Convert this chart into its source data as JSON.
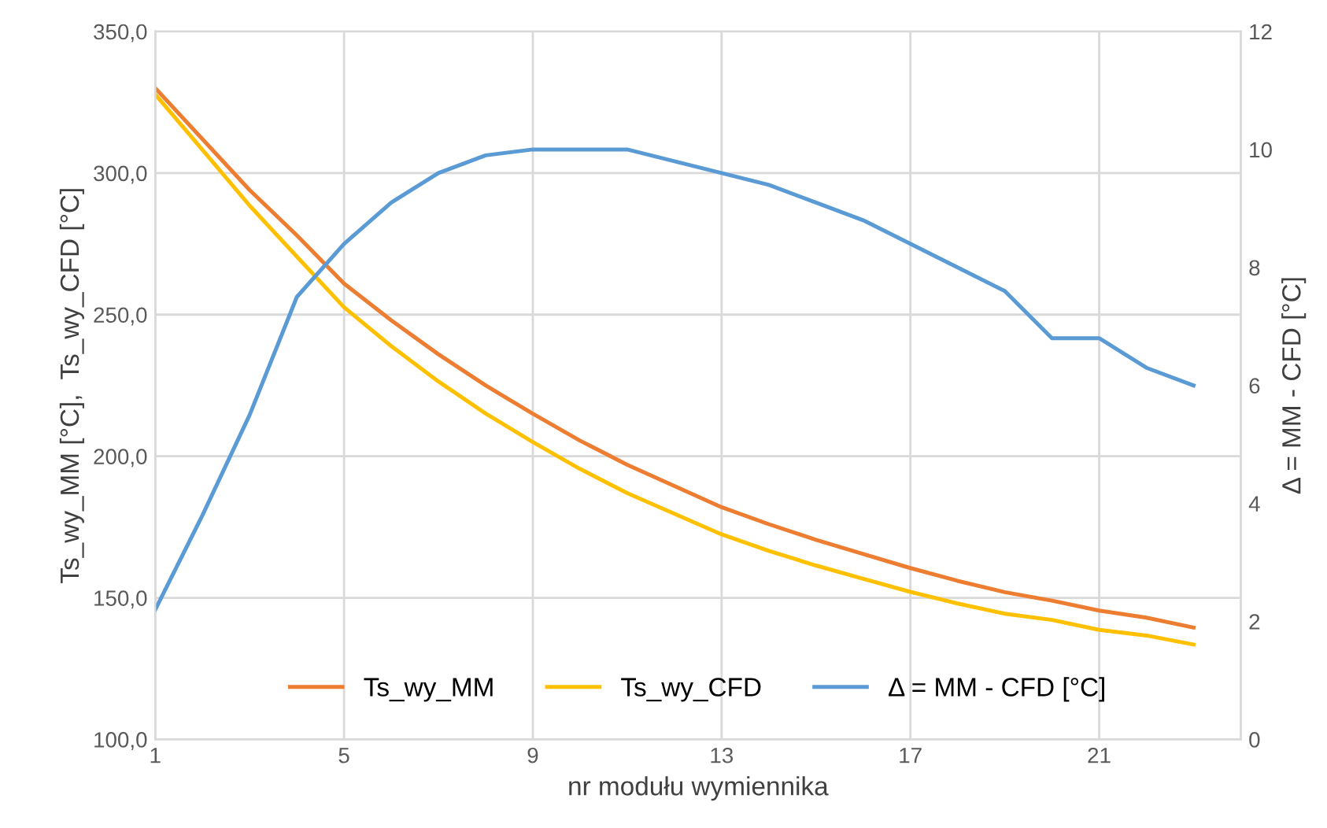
{
  "chart_data": {
    "type": "line",
    "xlabel": "nr modułu wymiennika",
    "ylabel": "Ts_wy_MM [°C],  Ts_wy_CFD [°C]",
    "y2label": "Δ = MM - CFD [°C]",
    "x": [
      1,
      2,
      3,
      4,
      5,
      6,
      7,
      8,
      9,
      10,
      11,
      12,
      13,
      14,
      15,
      16,
      17,
      18,
      19,
      20,
      21,
      22,
      23
    ],
    "series": [
      {
        "name": "Ts_wy_MM",
        "color": "#ed7d31",
        "values": [
          330,
          312,
          294,
          278,
          261,
          248,
          236,
          225,
          215,
          205.5,
          197,
          189.5,
          182,
          176,
          170.5,
          165.5,
          160.5,
          156,
          152,
          149,
          145.5,
          143,
          139.5
        ]
      },
      {
        "name": "Ts_wy_CFD",
        "color": "#ffc000",
        "values": [
          327.8,
          308.2,
          288.5,
          270.5,
          252.6,
          238.9,
          226.4,
          215.1,
          205,
          195.5,
          187,
          179.7,
          172.4,
          166.6,
          161.4,
          156.7,
          152.1,
          148,
          144.4,
          142.2,
          138.7,
          136.7,
          133.5
        ]
      },
      {
        "name": "Δ = MM - CFD [°C]",
        "color": "#5b9bd5",
        "axis": "y2",
        "values": [
          2.2,
          3.8,
          5.5,
          7.5,
          8.4,
          9.1,
          9.6,
          9.9,
          10,
          10,
          10,
          9.8,
          9.6,
          9.4,
          9.1,
          8.8,
          8.4,
          8.0,
          7.6,
          6.8,
          6.8,
          6.3,
          6.0
        ]
      }
    ],
    "xlim": [
      1,
      24
    ],
    "xticks": [
      1,
      5,
      9,
      13,
      17,
      21
    ],
    "ylim": [
      100,
      350
    ],
    "yticks": [
      {
        "value": 100,
        "label": "100,0"
      },
      {
        "value": 150,
        "label": "150,0"
      },
      {
        "value": 200,
        "label": "200,0"
      },
      {
        "value": 250,
        "label": "250,0"
      },
      {
        "value": 300,
        "label": "300,0"
      },
      {
        "value": 350,
        "label": "350,0"
      }
    ],
    "y2lim": [
      0,
      12
    ],
    "y2ticks": [
      0,
      2,
      4,
      6,
      8,
      10,
      12
    ],
    "grid": true,
    "legend": "bottom",
    "marker": "none",
    "line_style": "solid"
  }
}
